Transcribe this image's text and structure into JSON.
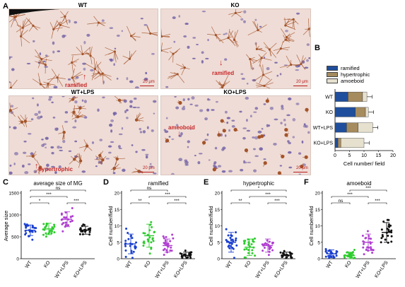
{
  "panel_labels": [
    "A",
    "B",
    "C",
    "D",
    "E",
    "F"
  ],
  "micrographs": [
    {
      "title": "WT",
      "annotation": "ramified",
      "scale": "20 μm"
    },
    {
      "title": "KO",
      "annotation": "ramified",
      "scale": "20 μm"
    },
    {
      "title": "WT+LPS",
      "annotation": "hypertrophic",
      "scale": "20 μm"
    },
    {
      "title": "KO+LPS",
      "annotation": "ameoboid",
      "scale": "20 μm"
    }
  ],
  "colors": {
    "ramified": "#1f4e9c",
    "hypertrophic": "#a58b5e",
    "amoeboid": "#e6e0cf",
    "WT": "#1a3fcf",
    "KO": "#2ecc2e",
    "WT+LPS": "#b03fd1",
    "KO+LPS": "#111111",
    "tissue": "#efdcd6",
    "microglia": "#a4542a",
    "nuclei": "#6f5fa5"
  },
  "chart_data": [
    {
      "id": "B",
      "type": "bar",
      "orientation": "horizontal",
      "stacked": true,
      "categories": [
        "WT",
        "KO",
        "WT+LPS",
        "KO+LPS"
      ],
      "series": [
        {
          "name": "ramified",
          "values": [
            4.5,
            7.0,
            4.0,
            1.0
          ]
        },
        {
          "name": "hypertrophic",
          "values": [
            5.0,
            3.5,
            4.0,
            1.0
          ]
        },
        {
          "name": "amoeboid",
          "values": [
            1.5,
            1.0,
            5.0,
            8.0
          ]
        }
      ],
      "xlabel": "Cell number/ field",
      "xlim": [
        0,
        20
      ],
      "xticks": [
        0,
        5,
        10,
        15,
        20
      ],
      "legend_position": "top"
    },
    {
      "id": "C",
      "type": "scatter",
      "title": "average size of MG",
      "ylabel": "Average size",
      "categories": [
        "WT",
        "KO",
        "WT+LPS",
        "KO+LPS"
      ],
      "means": [
        650,
        680,
        900,
        650
      ],
      "sd": [
        120,
        130,
        170,
        90
      ],
      "ylim": [
        0,
        1500
      ],
      "yticks": [
        0,
        500,
        1000,
        1500
      ],
      "significance": [
        {
          "groups": [
            0,
            1
          ],
          "label": "*"
        },
        {
          "groups": [
            0,
            2
          ],
          "label": "***"
        },
        {
          "groups": [
            2,
            3
          ],
          "label": "***"
        },
        {
          "groups": [
            0,
            3
          ],
          "label": "ns"
        }
      ]
    },
    {
      "id": "D",
      "type": "scatter",
      "title": "ramified",
      "ylabel": "Cell number/field",
      "categories": [
        "WT",
        "KO",
        "WT+LPS",
        "KO+LPS"
      ],
      "means": [
        4.5,
        7.0,
        4.0,
        1.0
      ],
      "sd": [
        3.0,
        3.5,
        2.0,
        1.0
      ],
      "ylim": [
        0,
        20
      ],
      "yticks": [
        0,
        5,
        10,
        15,
        20
      ],
      "significance": [
        {
          "groups": [
            0,
            1
          ],
          "label": "**"
        },
        {
          "groups": [
            2,
            3
          ],
          "label": "***"
        },
        {
          "groups": [
            1,
            3
          ],
          "label": "***"
        },
        {
          "groups": [
            0,
            2
          ],
          "label": "ns"
        }
      ]
    },
    {
      "id": "E",
      "type": "scatter",
      "title": "hypertrophic",
      "ylabel": "Cell number/field",
      "categories": [
        "WT",
        "KO",
        "WT+LPS",
        "KO+LPS"
      ],
      "means": [
        5.0,
        3.5,
        4.0,
        1.0
      ],
      "sd": [
        3.0,
        2.5,
        2.0,
        1.0
      ],
      "ylim": [
        0,
        20
      ],
      "yticks": [
        0,
        5,
        10,
        15,
        20
      ],
      "significance": [
        {
          "groups": [
            0,
            1
          ],
          "label": "**"
        },
        {
          "groups": [
            2,
            3
          ],
          "label": "***"
        },
        {
          "groups": [
            1,
            3
          ],
          "label": "***"
        },
        {
          "groups": [
            0,
            3
          ],
          "label": "*"
        }
      ]
    },
    {
      "id": "F",
      "type": "scatter",
      "title": "amoeboid",
      "ylabel": "Cell number/field",
      "categories": [
        "WT",
        "KO",
        "WT+LPS",
        "KO+LPS"
      ],
      "means": [
        1.5,
        1.0,
        5.0,
        8.0
      ],
      "sd": [
        1.2,
        1.0,
        2.5,
        3.0
      ],
      "ylim": [
        0,
        20
      ],
      "yticks": [
        0,
        5,
        10,
        15,
        20
      ],
      "significance": [
        {
          "groups": [
            0,
            1
          ],
          "label": "ns"
        },
        {
          "groups": [
            2,
            3
          ],
          "label": "***"
        },
        {
          "groups": [
            0,
            2
          ],
          "label": "***"
        },
        {
          "groups": [
            1,
            3
          ],
          "label": "***"
        }
      ]
    }
  ]
}
